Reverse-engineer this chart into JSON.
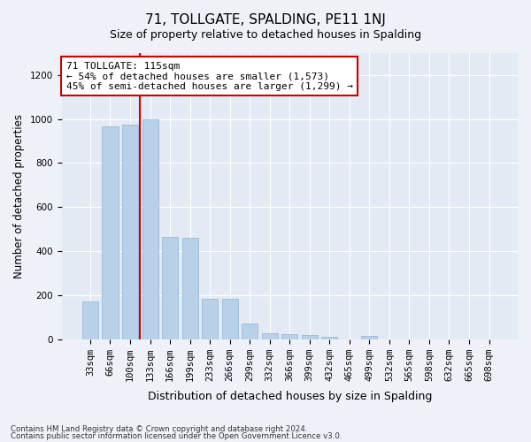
{
  "title": "71, TOLLGATE, SPALDING, PE11 1NJ",
  "subtitle": "Size of property relative to detached houses in Spalding",
  "xlabel": "Distribution of detached houses by size in Spalding",
  "ylabel": "Number of detached properties",
  "footnote1": "Contains HM Land Registry data © Crown copyright and database right 2024.",
  "footnote2": "Contains public sector information licensed under the Open Government Licence v3.0.",
  "categories": [
    "33sqm",
    "66sqm",
    "100sqm",
    "133sqm",
    "166sqm",
    "199sqm",
    "233sqm",
    "266sqm",
    "299sqm",
    "332sqm",
    "366sqm",
    "399sqm",
    "432sqm",
    "465sqm",
    "499sqm",
    "532sqm",
    "565sqm",
    "598sqm",
    "632sqm",
    "665sqm",
    "698sqm"
  ],
  "values": [
    170,
    965,
    975,
    998,
    465,
    462,
    183,
    183,
    70,
    27,
    22,
    20,
    12,
    0,
    13,
    0,
    0,
    0,
    0,
    0,
    0
  ],
  "bar_color": "#b8d0e8",
  "bar_edge_color": "#8ab4d4",
  "vline_color": "#cc0000",
  "vline_x_index": 2,
  "annotation_text": "71 TOLLGATE: 115sqm\n← 54% of detached houses are smaller (1,573)\n45% of semi-detached houses are larger (1,299) →",
  "annotation_box_color": "white",
  "annotation_box_edge_color": "#cc0000",
  "annotation_fontsize": 8,
  "title_fontsize": 11,
  "subtitle_fontsize": 9,
  "xlabel_fontsize": 9,
  "ylabel_fontsize": 8.5,
  "tick_fontsize": 7.5,
  "ylim": [
    0,
    1300
  ],
  "yticks": [
    0,
    200,
    400,
    600,
    800,
    1000,
    1200
  ],
  "background_color": "#eef2f8",
  "plot_bg_color": "#e4eaf4"
}
